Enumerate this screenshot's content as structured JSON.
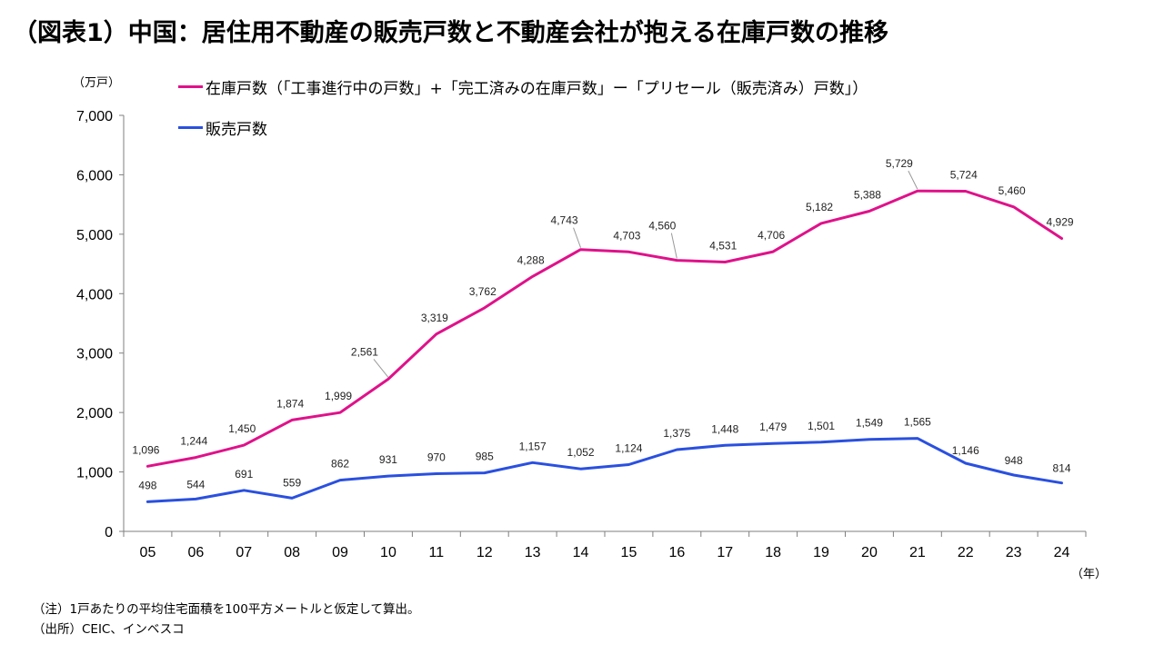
{
  "title": "（図表1）中国：居住用不動産の販売戸数と不動産会社が抱える在庫戸数の推移",
  "y_unit": "（万戸）",
  "x_unit": "（年）",
  "notes": {
    "note": "（注）1戸あたりの平均住宅面積を100平方メートルと仮定して算出。",
    "source": "（出所）CEIC、インベスコ"
  },
  "colors": {
    "inventory": "#e0118a",
    "sales": "#2a50e0",
    "axis": "#7f7f7f"
  },
  "chart_data": {
    "type": "line",
    "categories": [
      "05",
      "06",
      "07",
      "08",
      "09",
      "10",
      "11",
      "12",
      "13",
      "14",
      "15",
      "16",
      "17",
      "18",
      "19",
      "20",
      "21",
      "22",
      "23",
      "24"
    ],
    "ylim": [
      0,
      7000
    ],
    "yticks": [
      0,
      1000,
      2000,
      3000,
      4000,
      5000,
      6000,
      7000
    ],
    "ytick_labels": [
      "0",
      "1,000",
      "2,000",
      "3,000",
      "4,000",
      "5,000",
      "6,000",
      "7,000"
    ],
    "legend_placement": "top-left",
    "grid": false,
    "series": [
      {
        "name": "在庫戸数（「工事進行中の戸数」+「完工済みの在庫戸数」ー「プリセール（販売済み）戸数」）",
        "values": [
          1096,
          1244,
          1450,
          1874,
          1999,
          2561,
          3319,
          3762,
          4288,
          4743,
          4703,
          4560,
          4531,
          4706,
          5182,
          5388,
          5729,
          5724,
          5460,
          4929
        ],
        "labels": [
          "1,096",
          "1,244",
          "1,450",
          "1,874",
          "1,999",
          "2,561",
          "3,319",
          "3,762",
          "4,288",
          "4,743",
          "4,703",
          "4,560",
          "4,531",
          "4,706",
          "5,182",
          "5,388",
          "5,729",
          "5,724",
          "5,460",
          "4,929"
        ]
      },
      {
        "name": "販売戸数",
        "values": [
          498,
          544,
          691,
          559,
          862,
          931,
          970,
          985,
          1157,
          1052,
          1124,
          1375,
          1448,
          1479,
          1501,
          1549,
          1565,
          1146,
          948,
          814
        ],
        "labels": [
          "498",
          "544",
          "691",
          "559",
          "862",
          "931",
          "970",
          "985",
          "1,157",
          "1,052",
          "1,124",
          "1,375",
          "1,448",
          "1,479",
          "1,501",
          "1,549",
          "1,565",
          "1,146",
          "948",
          "814"
        ]
      }
    ]
  }
}
